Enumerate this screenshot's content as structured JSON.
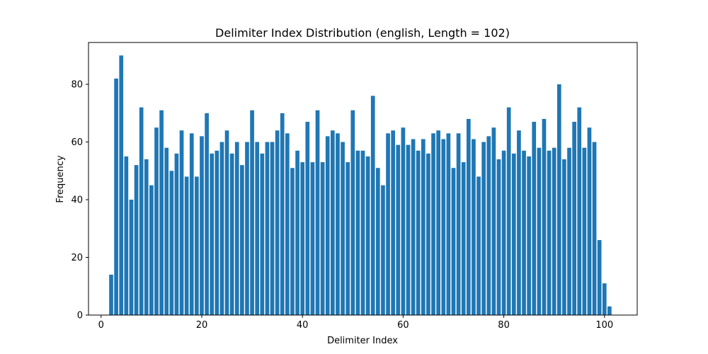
{
  "chart_data": {
    "type": "bar",
    "title": "Delimiter Index Distribution (english, Length = 102)",
    "xlabel": "Delimiter Index",
    "ylabel": "Frequency",
    "xlim": [
      -2.5,
      106.5
    ],
    "ylim": [
      0,
      94.5
    ],
    "xticks": [
      0,
      20,
      40,
      60,
      80,
      100
    ],
    "yticks": [
      0,
      20,
      40,
      60,
      80
    ],
    "grid": false,
    "legend": "none",
    "bar_color": "#1f77b4",
    "x": [
      2,
      3,
      4,
      5,
      6,
      7,
      8,
      9,
      10,
      11,
      12,
      13,
      14,
      15,
      16,
      17,
      18,
      19,
      20,
      21,
      22,
      23,
      24,
      25,
      26,
      27,
      28,
      29,
      30,
      31,
      32,
      33,
      34,
      35,
      36,
      37,
      38,
      39,
      40,
      41,
      42,
      43,
      44,
      45,
      46,
      47,
      48,
      49,
      50,
      51,
      52,
      53,
      54,
      55,
      56,
      57,
      58,
      59,
      60,
      61,
      62,
      63,
      64,
      65,
      66,
      67,
      68,
      69,
      70,
      71,
      72,
      73,
      74,
      75,
      76,
      77,
      78,
      79,
      80,
      81,
      82,
      83,
      84,
      85,
      86,
      87,
      88,
      89,
      90,
      91,
      92,
      93,
      94,
      95,
      96,
      97,
      98,
      99,
      100,
      101
    ],
    "values": [
      14,
      82,
      90,
      55,
      40,
      52,
      72,
      54,
      45,
      65,
      71,
      58,
      50,
      56,
      64,
      48,
      63,
      48,
      62,
      70,
      56,
      57,
      60,
      64,
      56,
      60,
      52,
      60,
      71,
      60,
      56,
      60,
      60,
      64,
      70,
      63,
      51,
      57,
      53,
      67,
      53,
      71,
      53,
      62,
      64,
      63,
      60,
      53,
      71,
      57,
      57,
      55,
      76,
      51,
      45,
      63,
      64,
      59,
      65,
      59,
      61,
      57,
      61,
      56,
      63,
      64,
      61,
      63,
      51,
      63,
      53,
      68,
      61,
      48,
      60,
      62,
      65,
      54,
      57,
      72,
      56,
      64,
      57,
      55,
      67,
      58,
      68,
      57,
      58,
      80,
      54,
      58,
      67,
      72,
      58,
      65,
      60,
      26,
      11,
      3
    ]
  }
}
